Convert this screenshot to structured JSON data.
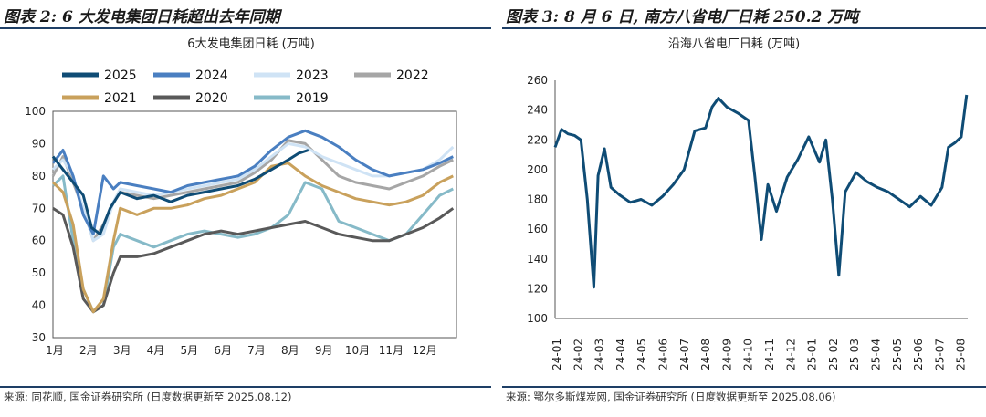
{
  "left": {
    "header": "图表 2: 6 大发电集团日耗超出去年同期",
    "source": "来源: 同花顺, 国金证券研究所 (日度数据更新至 2025.08.12)",
    "chart_data": {
      "type": "line",
      "title": "6大发电集团日耗 (万吨)",
      "ylim": [
        30,
        100
      ],
      "yticks": [
        30,
        40,
        50,
        60,
        70,
        80,
        90,
        100
      ],
      "x_labels": [
        "1月",
        "2月",
        "3月",
        "4月",
        "5月",
        "6月",
        "7月",
        "8月",
        "9月",
        "10月",
        "11月",
        "12月"
      ],
      "xlim": [
        0,
        12
      ],
      "series": [
        {
          "name": "2025",
          "color": "#0f4c75",
          "width": 3,
          "x": [
            0,
            0.3,
            0.6,
            0.9,
            1.15,
            1.4,
            1.7,
            2.0,
            2.5,
            3.0,
            3.5,
            4.0,
            4.5,
            5.0,
            5.5,
            6.0,
            6.5,
            7.0,
            7.3,
            7.6
          ],
          "y": [
            86,
            82,
            78,
            74,
            64,
            62,
            70,
            75,
            73,
            74,
            72,
            74,
            75,
            76,
            77,
            79,
            82,
            85,
            87,
            88
          ]
        },
        {
          "name": "2024",
          "color": "#4a7fc1",
          "width": 3,
          "x": [
            0,
            0.3,
            0.6,
            0.9,
            1.2,
            1.5,
            1.8,
            2.0,
            2.5,
            3.0,
            3.5,
            4.0,
            4.5,
            5.0,
            5.5,
            6.0,
            6.5,
            7.0,
            7.5,
            8.0,
            8.5,
            9.0,
            9.5,
            10.0,
            10.5,
            11.0,
            11.5,
            11.9
          ],
          "y": [
            84,
            88,
            80,
            68,
            62,
            80,
            76,
            78,
            77,
            76,
            75,
            77,
            78,
            79,
            80,
            83,
            88,
            92,
            94,
            92,
            89,
            85,
            82,
            80,
            81,
            82,
            84,
            86
          ]
        },
        {
          "name": "2023",
          "color": "#cfe3f5",
          "width": 3,
          "x": [
            0,
            0.3,
            0.6,
            0.9,
            1.2,
            1.5,
            1.8,
            2.0,
            2.5,
            3.0,
            3.5,
            4.0,
            4.5,
            5.0,
            5.5,
            6.0,
            6.5,
            7.0,
            7.5,
            8.0,
            8.5,
            9.0,
            9.5,
            10.0,
            10.5,
            11.0,
            11.5,
            11.9
          ],
          "y": [
            82,
            85,
            80,
            70,
            60,
            62,
            72,
            76,
            75,
            74,
            75,
            76,
            77,
            78,
            79,
            82,
            86,
            90,
            89,
            86,
            84,
            82,
            80,
            80,
            81,
            82,
            85,
            89
          ]
        },
        {
          "name": "2022",
          "color": "#a6a6a6",
          "width": 3,
          "x": [
            0,
            0.3,
            0.6,
            0.9,
            1.2,
            1.5,
            1.8,
            2.0,
            2.5,
            3.0,
            3.5,
            4.0,
            4.5,
            5.0,
            5.5,
            6.0,
            6.5,
            7.0,
            7.5,
            8.0,
            8.5,
            9.0,
            9.5,
            10.0,
            10.5,
            11.0,
            11.5,
            11.9
          ],
          "y": [
            80,
            86,
            78,
            70,
            60,
            65,
            72,
            75,
            74,
            73,
            74,
            75,
            76,
            77,
            78,
            81,
            85,
            91,
            90,
            85,
            80,
            78,
            77,
            76,
            78,
            80,
            83,
            85
          ]
        },
        {
          "name": "2021",
          "color": "#c9a15c",
          "width": 3,
          "x": [
            0,
            0.3,
            0.6,
            0.9,
            1.2,
            1.5,
            1.8,
            2.0,
            2.5,
            3.0,
            3.5,
            4.0,
            4.5,
            5.0,
            5.5,
            6.0,
            6.5,
            7.0,
            7.5,
            8.0,
            8.5,
            9.0,
            9.5,
            10.0,
            10.5,
            11.0,
            11.5,
            11.9
          ],
          "y": [
            78,
            75,
            65,
            45,
            38,
            42,
            60,
            70,
            68,
            70,
            70,
            71,
            73,
            74,
            76,
            78,
            83,
            84,
            80,
            77,
            75,
            73,
            72,
            71,
            72,
            74,
            78,
            80
          ]
        },
        {
          "name": "2020",
          "color": "#595959",
          "width": 3,
          "x": [
            0,
            0.3,
            0.6,
            0.9,
            1.2,
            1.5,
            1.8,
            2.0,
            2.5,
            3.0,
            3.5,
            4.0,
            4.5,
            5.0,
            5.5,
            6.0,
            6.5,
            7.0,
            7.5,
            8.0,
            8.5,
            9.0,
            9.5,
            10.0,
            10.5,
            11.0,
            11.5,
            11.9
          ],
          "y": [
            70,
            68,
            58,
            42,
            38,
            40,
            50,
            55,
            55,
            56,
            58,
            60,
            62,
            63,
            62,
            63,
            64,
            65,
            66,
            64,
            62,
            61,
            60,
            60,
            62,
            64,
            67,
            70
          ]
        },
        {
          "name": "2019",
          "color": "#86bac8",
          "width": 3,
          "x": [
            0,
            0.3,
            0.6,
            0.9,
            1.2,
            1.5,
            1.8,
            2.0,
            2.5,
            3.0,
            3.5,
            4.0,
            4.5,
            5.0,
            5.5,
            6.0,
            6.5,
            7.0,
            7.5,
            8.0,
            8.5,
            9.0,
            9.5,
            10.0,
            10.5,
            11.0,
            11.5,
            11.9
          ],
          "y": [
            77,
            80,
            60,
            45,
            38,
            40,
            58,
            62,
            60,
            58,
            60,
            62,
            63,
            62,
            61,
            62,
            64,
            68,
            78,
            76,
            66,
            64,
            62,
            60,
            62,
            68,
            74,
            76
          ]
        }
      ]
    }
  },
  "right": {
    "header": "图表 3: 8 月 6 日, 南方八省电厂日耗 250.2 万吨",
    "source": "来源: 鄂尔多斯煤炭网, 国金证券研究所 (日度数据更新至 2025.08.06)",
    "chart_data": {
      "type": "line",
      "title": "沿海八省电厂日耗 (万吨)",
      "ylim": [
        100,
        260
      ],
      "yticks": [
        100,
        120,
        140,
        160,
        180,
        200,
        220,
        240,
        260
      ],
      "x_labels": [
        "24-01",
        "24-02",
        "24-03",
        "24-04",
        "24-05",
        "24-06",
        "24-07",
        "24-08",
        "24-09",
        "24-10",
        "24-11",
        "24-12",
        "25-01",
        "25-02",
        "25-03",
        "25-04",
        "25-05",
        "25-06",
        "25-07",
        "25-08"
      ],
      "xlim": [
        0,
        19.2
      ],
      "series": [
        {
          "name": "沿海八省电厂日耗",
          "color": "#0f4c75",
          "width": 3,
          "x": [
            0,
            0.3,
            0.6,
            0.9,
            1.2,
            1.5,
            1.8,
            2.0,
            2.3,
            2.6,
            3.0,
            3.5,
            4.0,
            4.5,
            5.0,
            5.5,
            6.0,
            6.5,
            7.0,
            7.3,
            7.6,
            8.0,
            8.5,
            9.0,
            9.3,
            9.6,
            9.9,
            10.3,
            10.8,
            11.3,
            11.8,
            12.3,
            12.6,
            12.9,
            13.2,
            13.5,
            14.0,
            14.5,
            15.0,
            15.5,
            16.0,
            16.5,
            17.0,
            17.5,
            18.0,
            18.3,
            18.6,
            18.9,
            19.15
          ],
          "y": [
            215,
            227,
            224,
            223,
            220,
            180,
            121,
            196,
            214,
            188,
            183,
            178,
            180,
            176,
            182,
            190,
            200,
            226,
            228,
            242,
            248,
            242,
            238,
            233,
            195,
            153,
            190,
            172,
            195,
            207,
            222,
            205,
            220,
            180,
            129,
            185,
            198,
            192,
            188,
            185,
            180,
            175,
            182,
            176,
            188,
            215,
            218,
            222,
            250.2
          ]
        }
      ]
    }
  }
}
